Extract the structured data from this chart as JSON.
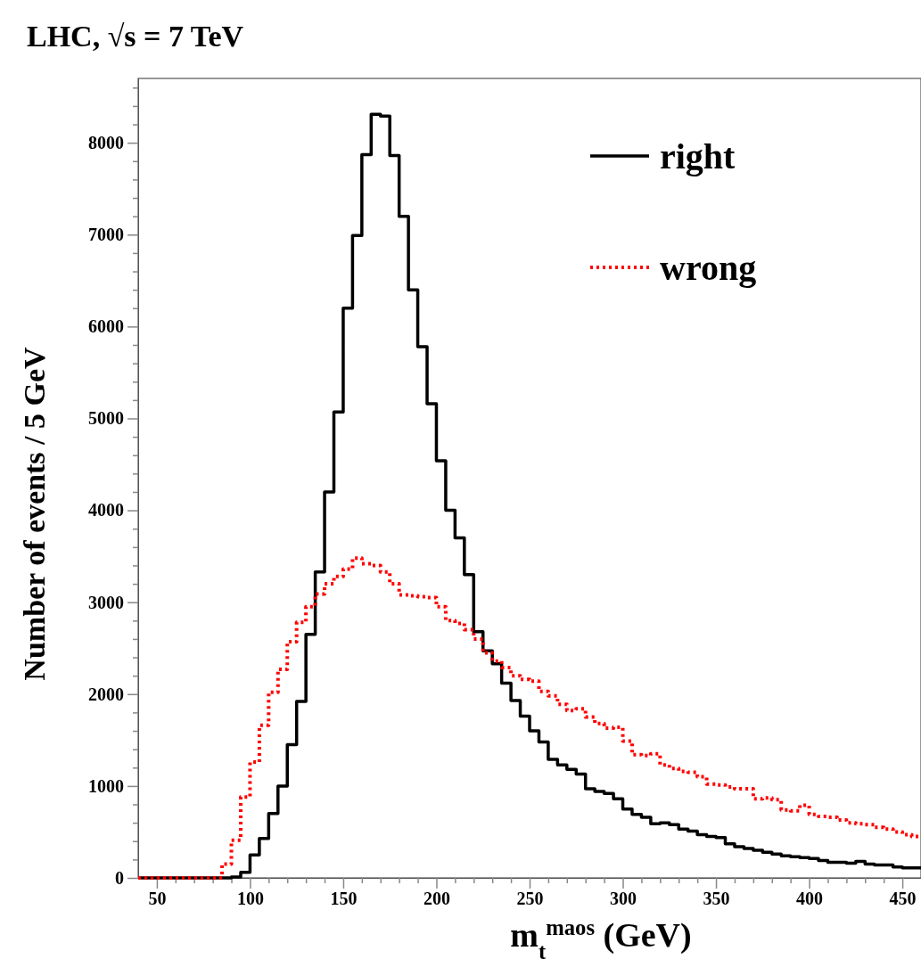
{
  "chart_data": {
    "type": "histogram",
    "title": "LHC, √s = 7 TeV",
    "xlabel": "m$_{t}$$^{maos}$ (GeV)",
    "ylabel": "Number of events / 5 GeV",
    "bins": [
      40,
      45,
      50,
      55,
      60,
      65,
      70,
      75,
      80,
      85,
      90,
      95,
      100,
      105,
      110,
      115,
      120,
      125,
      130,
      135,
      140,
      145,
      150,
      155,
      160,
      165,
      170,
      175,
      180,
      185,
      190,
      195,
      200,
      205,
      210,
      215,
      220,
      225,
      230,
      235,
      240,
      245,
      250,
      255,
      260,
      265,
      270,
      275,
      280,
      285,
      290,
      295,
      300,
      305,
      310,
      315,
      320,
      325,
      330,
      335,
      340,
      345,
      350,
      355,
      360,
      365,
      370,
      375,
      380,
      385,
      390,
      395,
      400,
      405,
      410,
      415,
      420,
      425,
      430,
      435,
      440,
      445,
      450,
      455,
      460
    ],
    "series": [
      {
        "name": "right",
        "color": "#000000",
        "line_style": "solid",
        "values": [
          0,
          0,
          0,
          0,
          0,
          0,
          0,
          0,
          0,
          0,
          10,
          60,
          250,
          430,
          700,
          1000,
          1450,
          1920,
          2650,
          3330,
          4200,
          5070,
          6200,
          6990,
          7870,
          8310,
          8290,
          7860,
          7200,
          6400,
          5780,
          5160,
          4540,
          4000,
          3700,
          3300,
          2680,
          2470,
          2330,
          2120,
          1930,
          1760,
          1600,
          1480,
          1290,
          1230,
          1180,
          1130,
          970,
          940,
          920,
          860,
          750,
          690,
          660,
          590,
          600,
          580,
          530,
          510,
          470,
          450,
          440,
          370,
          340,
          320,
          300,
          280,
          260,
          240,
          230,
          220,
          210,
          190,
          170,
          170,
          160,
          180,
          150,
          140,
          140,
          120,
          110,
          110
        ]
      },
      {
        "name": "wrong",
        "color": "#ff0000",
        "line_style": "dotted",
        "values": [
          0,
          0,
          0,
          0,
          0,
          0,
          0,
          0,
          0,
          150,
          410,
          880,
          1260,
          1660,
          2020,
          2270,
          2570,
          2780,
          2950,
          3090,
          3200,
          3280,
          3360,
          3480,
          3420,
          3400,
          3330,
          3200,
          3080,
          3070,
          3060,
          3050,
          2950,
          2800,
          2770,
          2700,
          2600,
          2450,
          2360,
          2290,
          2200,
          2160,
          2140,
          2030,
          1980,
          1890,
          1820,
          1840,
          1750,
          1680,
          1630,
          1640,
          1490,
          1340,
          1330,
          1350,
          1230,
          1190,
          1160,
          1150,
          1100,
          1020,
          1010,
          990,
          970,
          970,
          860,
          870,
          850,
          740,
          730,
          790,
          690,
          670,
          660,
          630,
          600,
          590,
          580,
          550,
          530,
          500,
          470,
          450
        ]
      }
    ],
    "xlim": [
      40,
      460
    ],
    "xticks": [
      50,
      {
        "value": 60,
        "label": null
      },
      {
        "value": 70,
        "label": null
      },
      {
        "value": 80,
        "label": null
      },
      {
        "value": 90,
        "label": null
      },
      100,
      {
        "value": 110,
        "label": null
      },
      {
        "value": 120,
        "label": null
      },
      {
        "value": 130,
        "label": null
      },
      {
        "value": 140,
        "label": null
      },
      150,
      {
        "value": 160,
        "label": null
      },
      {
        "value": 170,
        "label": null
      },
      {
        "value": 180,
        "label": null
      },
      {
        "value": 190,
        "label": null
      },
      200,
      {
        "value": 210,
        "label": null
      },
      {
        "value": 220,
        "label": null
      },
      {
        "value": 230,
        "label": null
      },
      {
        "value": 240,
        "label": null
      },
      250,
      {
        "value": 260,
        "label": null
      },
      {
        "value": 270,
        "label": null
      },
      {
        "value": 280,
        "label": null
      },
      {
        "value": 290,
        "label": null
      },
      300,
      {
        "value": 310,
        "label": null
      },
      {
        "value": 320,
        "label": null
      },
      {
        "value": 330,
        "label": null
      },
      {
        "value": 340,
        "label": null
      },
      350,
      {
        "value": 360,
        "label": null
      },
      {
        "value": 370,
        "label": null
      },
      {
        "value": 380,
        "label": null
      },
      {
        "value": 390,
        "label": null
      },
      400,
      {
        "value": 410,
        "label": null
      },
      {
        "value": 420,
        "label": null
      },
      {
        "value": 430,
        "label": null
      },
      {
        "value": 440,
        "label": null
      },
      450
    ],
    "ylim": [
      0,
      8700
    ],
    "yticks": [
      0,
      {
        "value": 200,
        "label": null
      },
      {
        "value": 400,
        "label": null
      },
      {
        "value": 600,
        "label": null
      },
      {
        "value": 800,
        "label": null
      },
      1000,
      {
        "value": 1200,
        "label": null
      },
      {
        "value": 1400,
        "label": null
      },
      {
        "value": 1600,
        "label": null
      },
      {
        "value": 1800,
        "label": null
      },
      2000,
      {
        "value": 2200,
        "label": null
      },
      {
        "value": 2400,
        "label": null
      },
      {
        "value": 2600,
        "label": null
      },
      {
        "value": 2800,
        "label": null
      },
      3000,
      {
        "value": 3200,
        "label": null
      },
      {
        "value": 3400,
        "label": null
      },
      {
        "value": 3600,
        "label": null
      },
      {
        "value": 3800,
        "label": null
      },
      4000,
      {
        "value": 4200,
        "label": null
      },
      {
        "value": 4400,
        "label": null
      },
      {
        "value": 4600,
        "label": null
      },
      {
        "value": 4800,
        "label": null
      },
      5000,
      {
        "value": 5200,
        "label": null
      },
      {
        "value": 5400,
        "label": null
      },
      {
        "value": 5600,
        "label": null
      },
      {
        "value": 5800,
        "label": null
      },
      6000,
      {
        "value": 6200,
        "label": null
      },
      {
        "value": 6400,
        "label": null
      },
      {
        "value": 6600,
        "label": null
      },
      {
        "value": 6800,
        "label": null
      },
      7000,
      {
        "value": 7200,
        "label": null
      },
      {
        "value": 7400,
        "label": null
      },
      {
        "value": 7600,
        "label": null
      },
      {
        "value": 7800,
        "label": null
      },
      8000,
      {
        "value": 8200,
        "label": null
      },
      {
        "value": 8400,
        "label": null
      },
      {
        "value": 8600,
        "label": null
      }
    ],
    "legend": "top right",
    "grid": false
  }
}
